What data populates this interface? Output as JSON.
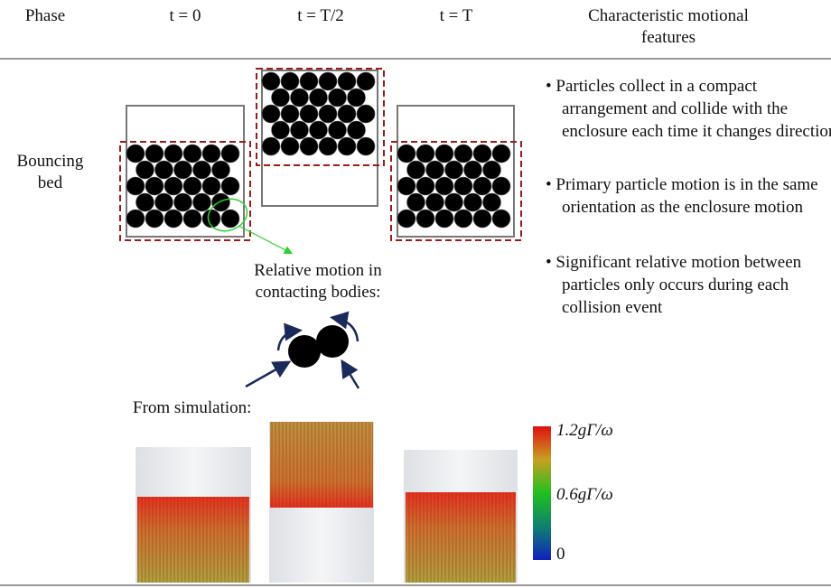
{
  "header": {
    "columns": [
      "Phase",
      "t = 0",
      "t = T/2",
      "t = T",
      "Characteristic motional features"
    ]
  },
  "rows": [
    {
      "phase": "Bouncing bed",
      "features": [
        "Particles collect in a compact arrangement and collide with the enclosure each time it changes direction",
        "Primary particle motion is in the same orientation as the enclosure motion",
        "Significant relative motion between particles only occurs during each collision event"
      ]
    }
  ],
  "inset": {
    "label": "Relative motion in contacting bodies:"
  },
  "simulation": {
    "label": "From simulation:",
    "colorbar": {
      "labels": [
        "1.2gΓ/ω",
        "0.6gΓ/ω",
        "0"
      ]
    }
  }
}
